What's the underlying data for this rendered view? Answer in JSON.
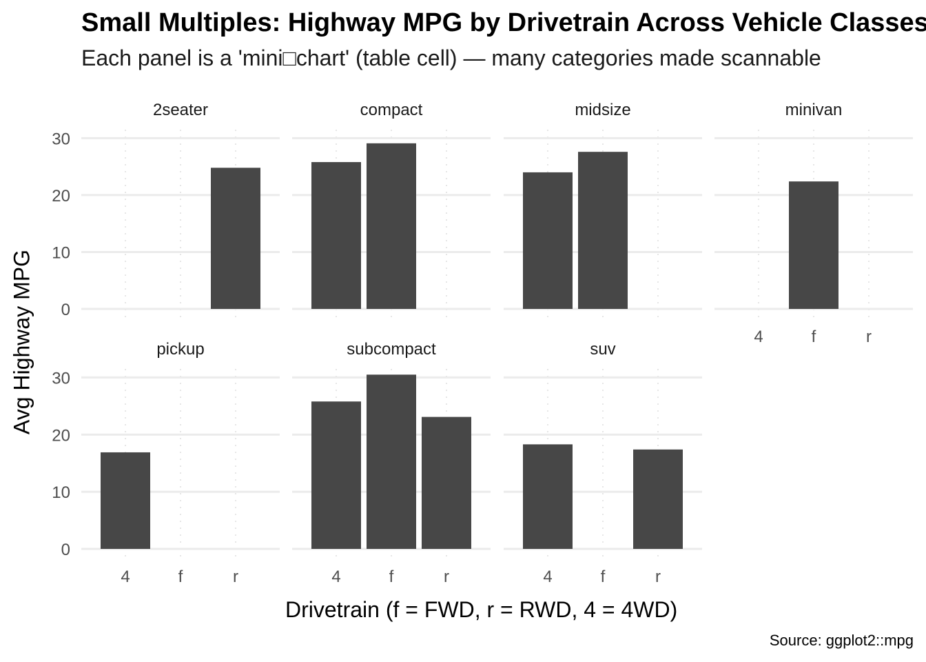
{
  "chart_data": {
    "type": "bar",
    "title": "Small Multiples: Highway MPG by Drivetrain Across Vehicle Classes",
    "subtitle": "Each panel is a 'mini□chart' (table cell) — many categories made scannable",
    "xlabel": "Drivetrain (f = FWD, r = RWD, 4 = 4WD)",
    "ylabel": "Avg Highway MPG",
    "caption": "Source: ggplot2::mpg",
    "categories": [
      "4",
      "f",
      "r"
    ],
    "yticks": [
      0,
      10,
      20,
      30
    ],
    "ylim": [
      0,
      31.5
    ],
    "bar_color": "#474747",
    "grid": true,
    "panels": [
      {
        "name": "2seater",
        "values": [
          null,
          null,
          24.8
        ]
      },
      {
        "name": "compact",
        "values": [
          25.8,
          29.1,
          null
        ]
      },
      {
        "name": "midsize",
        "values": [
          24.0,
          27.6,
          null
        ]
      },
      {
        "name": "minivan",
        "values": [
          null,
          22.4,
          null
        ]
      },
      {
        "name": "pickup",
        "values": [
          16.9,
          null,
          null
        ]
      },
      {
        "name": "subcompact",
        "values": [
          25.8,
          30.5,
          23.1
        ]
      },
      {
        "name": "suv",
        "values": [
          18.3,
          null,
          17.4
        ]
      }
    ]
  }
}
